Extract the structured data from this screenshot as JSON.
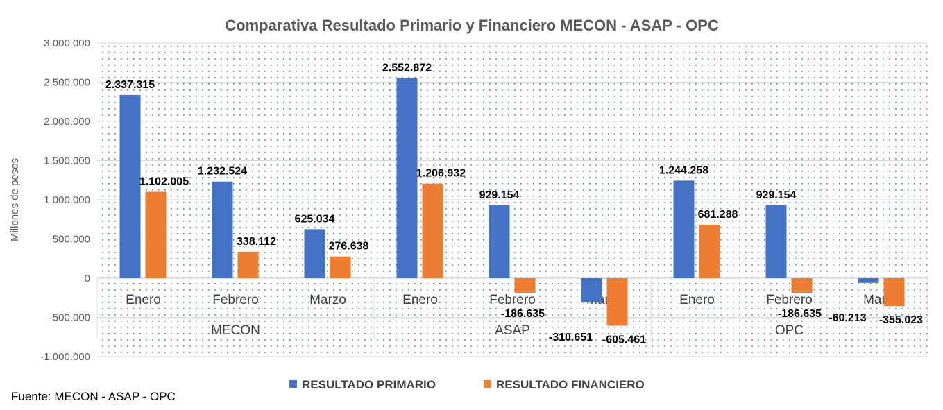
{
  "chart_data": {
    "type": "bar",
    "title": "Comparativa Resultado Primario y Financiero MECON - ASAP - OPC",
    "ylabel": "Millones de pesos",
    "xlabel": "",
    "ylim": [
      -1000000,
      3000000
    ],
    "yticks": [
      3000000,
      2500000,
      2000000,
      1500000,
      1000000,
      500000,
      0,
      -500000,
      -1000000
    ],
    "ytick_labels": [
      "3.000.000",
      "2.500.000",
      "2.000.000",
      "1.500.000",
      "1.000.000",
      "500.000",
      "0",
      "-500.000",
      "-1.000.000"
    ],
    "groups": [
      "MECON",
      "ASAP",
      "OPC"
    ],
    "categories": [
      "Enero",
      "Febrero",
      "Marzo",
      "Enero",
      "Febrero",
      "Marzo",
      "Enero",
      "Febrero",
      "Marzo"
    ],
    "series": [
      {
        "name": "RESULTADO PRIMARIO",
        "color": "#4472C4",
        "values": [
          2337315,
          1232524,
          625034,
          2552872,
          929154,
          -310651,
          1244258,
          929154,
          -60213
        ],
        "labels": [
          "2.337.315",
          "1.232.524",
          "625.034",
          "2.552.872",
          "929.154",
          "-310.651",
          "1.244.258",
          "929.154",
          "-60.213"
        ]
      },
      {
        "name": "RESULTADO FINANCIERO",
        "color": "#ED7D31",
        "values": [
          1102005,
          338112,
          276638,
          1206932,
          -186635,
          -605461,
          681288,
          -186635,
          -355023
        ],
        "labels": [
          "1.102.005",
          "338.112",
          "276.638",
          "1.206.932",
          "-186.635",
          "-605.461",
          "681.288",
          "-186.635",
          "-355.023"
        ]
      }
    ],
    "grid": true,
    "legend_position": "bottom"
  },
  "source_note": "Fuente: MECON - ASAP - OPC"
}
